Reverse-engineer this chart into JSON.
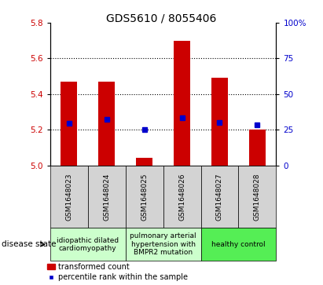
{
  "title": "GDS5610 / 8055406",
  "samples": [
    "GSM1648023",
    "GSM1648024",
    "GSM1648025",
    "GSM1648026",
    "GSM1648027",
    "GSM1648028"
  ],
  "bar_values": [
    5.47,
    5.47,
    5.04,
    5.7,
    5.49,
    5.2
  ],
  "blue_values": [
    5.235,
    5.258,
    5.2,
    5.268,
    5.24,
    5.228
  ],
  "ylim": [
    5.0,
    5.8
  ],
  "yticks_left": [
    5.0,
    5.2,
    5.4,
    5.6,
    5.8
  ],
  "yticks_right_vals": [
    0,
    25,
    50,
    75,
    100
  ],
  "yticks_right_labels": [
    "0",
    "25",
    "50",
    "75",
    "100%"
  ],
  "bar_color": "#cc0000",
  "blue_color": "#0000cc",
  "bar_width": 0.45,
  "groups": [
    {
      "label": "idiopathic dilated\ncardiomyopathy",
      "indices": [
        0,
        1
      ],
      "color": "#ccffcc"
    },
    {
      "label": "pulmonary arterial\nhypertension with\nBMPR2 mutation",
      "indices": [
        2,
        3
      ],
      "color": "#ccffcc"
    },
    {
      "label": "healthy control",
      "indices": [
        4,
        5
      ],
      "color": "#55ee55"
    }
  ],
  "disease_state_label": "disease state",
  "legend_bar_label": "transformed count",
  "legend_blue_label": "percentile rank within the sample",
  "title_fontsize": 10,
  "tick_fontsize": 7.5,
  "sample_fontsize": 6.5,
  "group_fontsize": 6.5,
  "legend_fontsize": 7,
  "ds_label_fontsize": 7.5
}
